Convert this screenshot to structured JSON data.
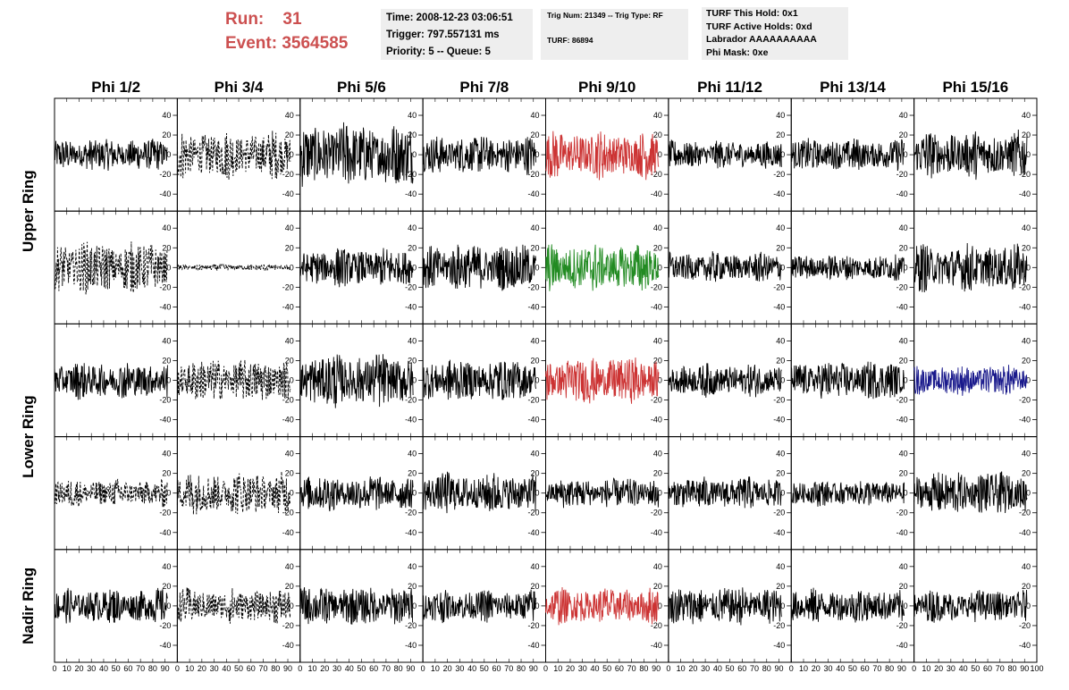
{
  "header": {
    "run_label": "Run:",
    "run_value": "31",
    "event_label": "Event:",
    "event_value": "3564585",
    "time": "Time: 2008-12-23 03:06:51",
    "trigger": "Trigger: 797.557131 ms",
    "priority": "Priority: 5 -- Queue: 5",
    "trig_num": "Trig Num: 21349 -- Trig Type: RF",
    "turf": "TURF: 86894",
    "turf_hold": "TURF This Hold: 0x1",
    "turf_active": "TURF Active Holds: 0xd",
    "labrador": "Labrador AAAAAAAAAA",
    "phi_mask": "Phi Mask: 0xe"
  },
  "chart_data": {
    "type": "line",
    "title": "",
    "columns": [
      "Phi 1/2",
      "Phi 3/4",
      "Phi 5/6",
      "Phi 7/8",
      "Phi 9/10",
      "Phi 11/12",
      "Phi 13/14",
      "Phi 15/16"
    ],
    "ring_labels": [
      {
        "text": "Upper Ring",
        "spans_rows": [
          0,
          1
        ]
      },
      {
        "text": "Lower Ring",
        "spans_rows": [
          2,
          3
        ]
      },
      {
        "text": "Nadir Ring",
        "spans_rows": [
          4
        ]
      }
    ],
    "xlim": [
      0,
      100
    ],
    "ylim": [
      -50,
      50
    ],
    "x_ticks": [
      0,
      10,
      20,
      30,
      40,
      50,
      60,
      70,
      80,
      90,
      100
    ],
    "y_ticks": [
      -40,
      -20,
      0,
      20,
      40
    ],
    "samples_per_trace": 260,
    "trace_x_range": [
      0,
      92
    ],
    "grid": false,
    "colors": {
      "normal": "#000000",
      "trigger": "#cc3333",
      "l2": "#228b22",
      "blue": "#1a1a8c",
      "run_text": "#cc5050"
    },
    "panels": [
      [
        {
          "style": "solid",
          "color": "normal",
          "amp": 15
        },
        {
          "style": "dashed",
          "color": "normal",
          "amp": 22
        },
        {
          "style": "solid",
          "color": "normal",
          "amp": 30
        },
        {
          "style": "solid",
          "color": "normal",
          "amp": 18
        },
        {
          "style": "solid",
          "color": "trigger",
          "amp": 22
        },
        {
          "style": "solid",
          "color": "normal",
          "amp": 13
        },
        {
          "style": "solid",
          "color": "normal",
          "amp": 15
        },
        {
          "style": "solid",
          "color": "normal",
          "amp": 22
        }
      ],
      [
        {
          "style": "dashed",
          "color": "normal",
          "amp": 24
        },
        {
          "style": "dashed",
          "color": "normal",
          "amp": 3
        },
        {
          "style": "solid",
          "color": "normal",
          "amp": 18
        },
        {
          "style": "solid",
          "color": "normal",
          "amp": 22
        },
        {
          "style": "solid",
          "color": "l2",
          "amp": 22
        },
        {
          "style": "solid",
          "color": "normal",
          "amp": 14
        },
        {
          "style": "solid",
          "color": "normal",
          "amp": 12
        },
        {
          "style": "solid",
          "color": "normal",
          "amp": 22
        }
      ],
      [
        {
          "style": "solid",
          "color": "normal",
          "amp": 17
        },
        {
          "style": "dashed",
          "color": "normal",
          "amp": 20
        },
        {
          "style": "solid",
          "color": "normal",
          "amp": 25
        },
        {
          "style": "solid",
          "color": "normal",
          "amp": 20
        },
        {
          "style": "solid",
          "color": "trigger",
          "amp": 22
        },
        {
          "style": "solid",
          "color": "normal",
          "amp": 15
        },
        {
          "style": "solid",
          "color": "normal",
          "amp": 18
        },
        {
          "style": "solid",
          "color": "blue",
          "amp": 14
        }
      ],
      [
        {
          "style": "dashed",
          "color": "normal",
          "amp": 13
        },
        {
          "style": "dashed",
          "color": "normal",
          "amp": 20
        },
        {
          "style": "solid",
          "color": "normal",
          "amp": 17
        },
        {
          "style": "solid",
          "color": "normal",
          "amp": 19
        },
        {
          "style": "solid",
          "color": "normal",
          "amp": 14
        },
        {
          "style": "solid",
          "color": "normal",
          "amp": 15
        },
        {
          "style": "solid",
          "color": "normal",
          "amp": 12
        },
        {
          "style": "solid",
          "color": "normal",
          "amp": 20
        }
      ],
      [
        {
          "style": "solid",
          "color": "normal",
          "amp": 16
        },
        {
          "style": "dashed",
          "color": "normal",
          "amp": 16
        },
        {
          "style": "solid",
          "color": "normal",
          "amp": 18
        },
        {
          "style": "solid",
          "color": "normal",
          "amp": 15
        },
        {
          "style": "solid",
          "color": "trigger",
          "amp": 17
        },
        {
          "style": "solid",
          "color": "normal",
          "amp": 18
        },
        {
          "style": "solid",
          "color": "normal",
          "amp": 16
        },
        {
          "style": "solid",
          "color": "normal",
          "amp": 15
        }
      ]
    ]
  }
}
